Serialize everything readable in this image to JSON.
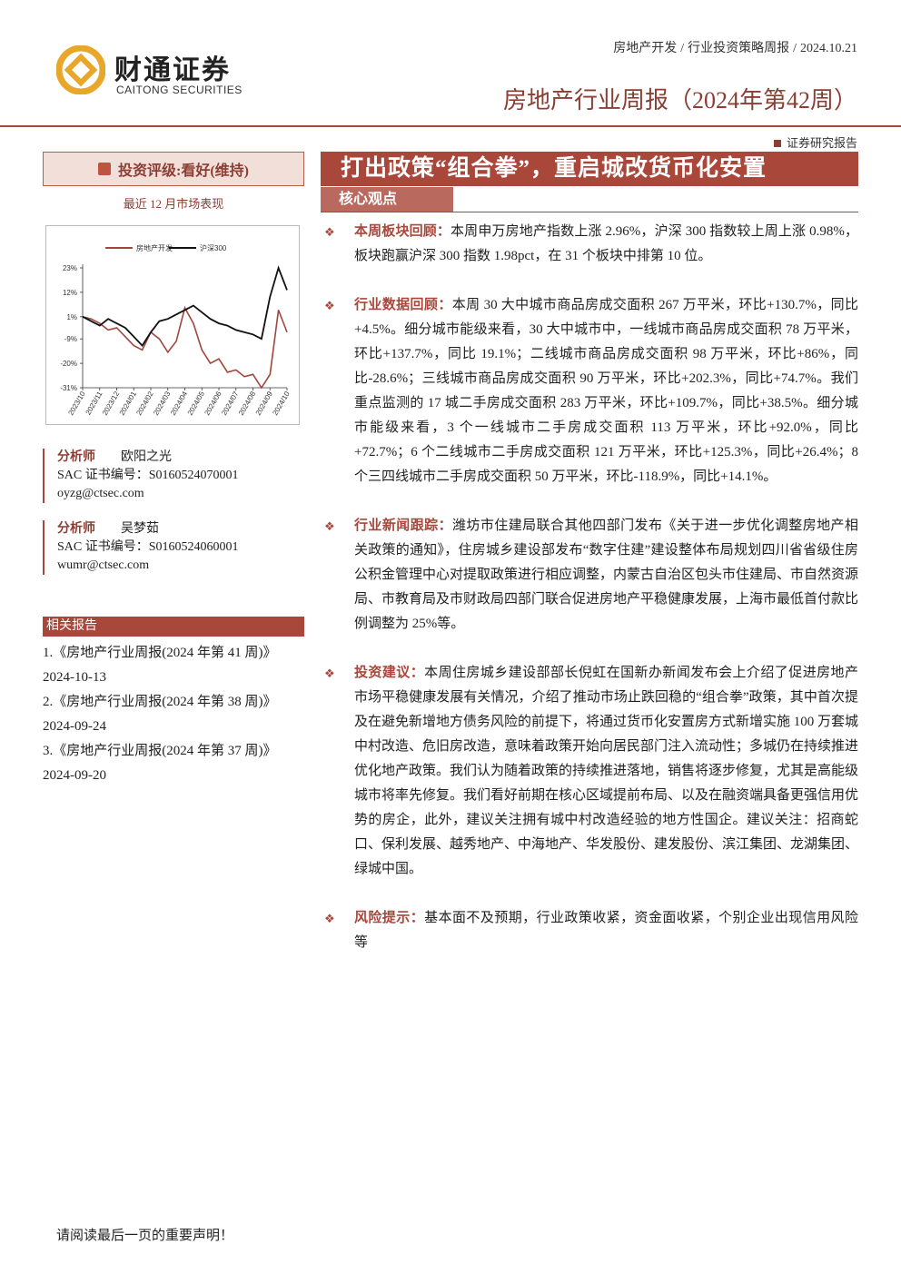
{
  "header": {
    "logo_cn": "财通证券",
    "logo_en": "CAITONG SECURITIES",
    "breadcrumb": [
      "房地产开发",
      "行业投资策略周报",
      "2024.10.21"
    ],
    "title": "房地产行业周报（2024年第42周）",
    "tag": "证券研究报告"
  },
  "sidebar": {
    "rating": "投资评级:看好(维持)",
    "chart_caption": "最近 12 月市场表现",
    "analysts": [
      {
        "role": "分析师",
        "name": "欧阳之光",
        "cert": "SAC 证书编号：S0160524070001",
        "email": "oyzg@ctsec.com"
      },
      {
        "role": "分析师",
        "name": "吴梦茹",
        "cert": "SAC 证书编号：S0160524060001",
        "email": "wumr@ctsec.com"
      }
    ],
    "related_heading": "相关报告",
    "related": [
      {
        "title": "1.《房地产行业周报(2024 年第 41 周)》",
        "date": "2024-10-13"
      },
      {
        "title": "2.《房地产行业周报(2024 年第 38 周)》",
        "date": "2024-09-24"
      },
      {
        "title": "3.《房地产行业周报(2024 年第 37 周)》",
        "date": "2024-09-20"
      }
    ]
  },
  "chart_data": {
    "type": "line",
    "categories": [
      "2023/10",
      null,
      "2023/11",
      null,
      "2023/12",
      null,
      "2024/01",
      null,
      "2024/02",
      null,
      "2024/03",
      null,
      "2024/04",
      null,
      "2024/05",
      null,
      "2024/06",
      null,
      "2024/07",
      null,
      "2024/08",
      null,
      "2024/09",
      null,
      "2024/10"
    ],
    "series": [
      {
        "name": "房地产开发",
        "color": "#a0463c",
        "values": [
          1,
          0,
          -2,
          -5,
          -4,
          -8,
          -12,
          -14,
          -6,
          -9,
          -15,
          -10,
          5,
          -2,
          -14,
          -20,
          -18,
          -24,
          -23,
          -26,
          -25,
          -31,
          -25,
          4,
          -6
        ]
      },
      {
        "name": "沪深300",
        "color": "#111111",
        "values": [
          1,
          -1,
          -3,
          0,
          -2,
          -4,
          -8,
          -12,
          -6,
          -1,
          0,
          2,
          4,
          6,
          3,
          0,
          -2,
          -3,
          -5,
          -6,
          -7,
          -9,
          10,
          23,
          13
        ]
      }
    ],
    "ylim": [
      -31,
      23
    ],
    "yticks": [
      {
        "value": 23,
        "label": "23%"
      },
      {
        "value": 12,
        "label": "12%"
      },
      {
        "value": 1,
        "label": "1%"
      },
      {
        "value": -9,
        "label": "-9%"
      },
      {
        "value": -20,
        "label": "-20%"
      },
      {
        "value": -31,
        "label": "-31%"
      }
    ],
    "legend": "top"
  },
  "main": {
    "headline": "打出政策“组合拳”，重启城改货币化安置",
    "section": "核心观点",
    "points": [
      {
        "lead": "本周板块回顾：",
        "text": "本周申万房地产指数上涨 2.96%，沪深 300 指数较上周上涨 0.98%，板块跑赢沪深 300 指数 1.98pct，在 31 个板块中排第 10 位。"
      },
      {
        "lead": "行业数据回顾：",
        "text": "本周 30 大中城市商品房成交面积 267 万平米，环比+130.7%，同比+4.5%。细分城市能级来看，30 大中城市中，一线城市商品房成交面积 78 万平米，环比+137.7%，同比 19.1%；二线城市商品房成交面积 98 万平米，环比+86%，同比-28.6%；三线城市商品房成交面积 90 万平米，环比+202.3%，同比+74.7%。我们重点监测的 17 城二手房成交面积 283 万平米，环比+109.7%，同比+38.5%。细分城市能级来看，3 个一线城市二手房成交面积 113 万平米，环比+92.0%，同比+72.7%；6 个二线城市二手房成交面积 121 万平米，环比+125.3%，同比+26.4%；8 个三四线城市二手房成交面积 50 万平米，环比-118.9%，同比+14.1%。"
      },
      {
        "lead": "行业新闻跟踪：",
        "text": "潍坊市住建局联合其他四部门发布《关于进一步优化调整房地产相关政策的通知》，住房城乡建设部发布“数字住建”建设整体布局规划四川省省级住房公积金管理中心对提取政策进行相应调整，内蒙古自治区包头市住建局、市自然资源局、市教育局及市财政局四部门联合促进房地产平稳健康发展，上海市最低首付款比例调整为 25%等。"
      },
      {
        "lead": "投资建议：",
        "text": "本周住房城乡建设部部长倪虹在国新办新闻发布会上介绍了促进房地产市场平稳健康发展有关情况，介绍了推动市场止跌回稳的“组合拳”政策，其中首次提及在避免新增地方债务风险的前提下，将通过货币化安置房方式新增实施 100 万套城中村改造、危旧房改造，意味着政策开始向居民部门注入流动性；多城仍在持续推进优化地产政策。我们认为随着政策的持续推进落地，销售将逐步修复，尤其是高能级城市将率先修复。我们看好前期在核心区域提前布局、以及在融资端具备更强信用优势的房企，此外，建议关注拥有城中村改造经验的地方性国企。建议关注：招商蛇口、保利发展、越秀地产、中海地产、华发股份、建发股份、滨江集团、龙湖集团、绿城中国。"
      },
      {
        "lead": "风险提示：",
        "text": "基本面不及预期，行业政策收紧，资金面收紧，个别企业出现信用风险等"
      }
    ]
  },
  "footer": "请阅读最后一页的重要声明！"
}
